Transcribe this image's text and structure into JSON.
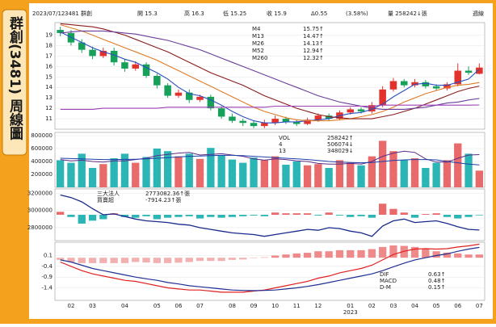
{
  "sidebar_title": "群創(3481) 周線圖",
  "header": {
    "items": [
      "2023/07/12",
      "3481 群創",
      "開 15.3",
      "高 16.3",
      "低 15.25",
      "收 15.9",
      "Δ0.55",
      "(3.58%)",
      "量 258242↓張"
    ],
    "period": "週線"
  },
  "chart_data": {
    "type": "candlestick",
    "categories": [
      null,
      "02",
      null,
      "03",
      null,
      null,
      "04",
      null,
      null,
      "05",
      null,
      "06",
      null,
      "07",
      null,
      null,
      "08",
      null,
      "09",
      null,
      "10",
      null,
      "11",
      null,
      "12",
      null,
      null,
      "01",
      null,
      "02",
      null,
      "03",
      null,
      "04",
      null,
      "05",
      null,
      "06",
      null,
      "07"
    ],
    "year_label": "2023",
    "up_color": "#e3322c",
    "down_color": "#17a05a",
    "price": {
      "ylim": [
        10,
        20.2
      ],
      "yticks": [
        11,
        12,
        13,
        14,
        15,
        16,
        17,
        18,
        19
      ],
      "open": [
        19.5,
        19.2,
        18.3,
        17.6,
        17.0,
        17.5,
        16.4,
        15.8,
        16.2,
        15.1,
        14.2,
        13.2,
        13.5,
        12.8,
        13.1,
        12.0,
        11.2,
        10.8,
        10.6,
        10.3,
        10.6,
        11.0,
        10.7,
        10.5,
        10.9,
        11.3,
        11.0,
        11.6,
        11.9,
        11.7,
        12.3,
        13.8,
        14.6,
        14.2,
        14.5,
        14.1,
        13.9,
        14.3,
        15.6,
        15.3
      ],
      "high": [
        19.8,
        19.5,
        18.6,
        17.9,
        17.8,
        17.8,
        16.7,
        16.5,
        16.4,
        15.3,
        14.4,
        13.8,
        13.8,
        13.3,
        13.3,
        12.2,
        11.5,
        11.0,
        10.8,
        10.9,
        11.3,
        11.2,
        10.9,
        11.1,
        11.5,
        11.5,
        11.8,
        12.1,
        12.1,
        12.6,
        14.1,
        14.9,
        14.8,
        14.8,
        14.7,
        14.3,
        14.5,
        16.3,
        16.0,
        16.3
      ],
      "low": [
        18.9,
        18.0,
        17.3,
        16.7,
        16.8,
        16.1,
        15.5,
        15.6,
        14.9,
        13.9,
        13.0,
        13.0,
        12.5,
        12.6,
        11.8,
        11.0,
        10.6,
        10.3,
        10.1,
        10.1,
        10.4,
        10.5,
        10.3,
        10.4,
        10.7,
        10.8,
        10.9,
        11.4,
        11.5,
        11.5,
        12.1,
        13.6,
        14.0,
        14.0,
        13.9,
        13.7,
        13.7,
        14.1,
        15.2,
        15.25
      ],
      "close": [
        19.2,
        18.3,
        17.6,
        17.0,
        17.5,
        16.4,
        15.8,
        16.2,
        15.1,
        14.2,
        13.2,
        13.5,
        12.8,
        13.1,
        12.0,
        11.2,
        10.8,
        10.6,
        10.3,
        10.6,
        11.0,
        10.7,
        10.5,
        10.9,
        11.3,
        11.0,
        11.6,
        11.9,
        11.7,
        12.3,
        13.8,
        14.6,
        14.2,
        14.5,
        14.1,
        13.9,
        14.3,
        15.6,
        15.4,
        15.9
      ],
      "series": [
        {
          "name": "M4",
          "color": "#2a4fc0",
          "legend_value": "15.75↑",
          "values": [
            19.3,
            18.8,
            18.3,
            17.8,
            17.4,
            17.1,
            16.7,
            16.4,
            15.9,
            15.4,
            14.8,
            14.0,
            13.4,
            13.2,
            12.8,
            12.3,
            11.7,
            11.2,
            10.8,
            10.6,
            10.6,
            10.7,
            10.7,
            10.8,
            10.9,
            11.0,
            11.3,
            11.5,
            11.6,
            11.9,
            12.4,
            13.1,
            13.7,
            14.3,
            14.4,
            14.2,
            14.2,
            14.5,
            14.8,
            15.75
          ]
        },
        {
          "name": "M13",
          "color": "#e07a26",
          "legend_value": "14.47↑",
          "values": [
            20.0,
            19.7,
            19.4,
            19.0,
            18.6,
            18.2,
            17.8,
            17.4,
            17.0,
            16.6,
            16.1,
            15.6,
            15.1,
            14.6,
            14.1,
            13.6,
            13.1,
            12.6,
            12.1,
            11.7,
            11.4,
            11.1,
            10.9,
            10.8,
            10.8,
            10.8,
            10.9,
            11.0,
            11.2,
            11.4,
            11.7,
            12.1,
            12.6,
            13.0,
            13.4,
            13.7,
            14.0,
            14.2,
            14.3,
            14.47
          ]
        },
        {
          "name": "M26",
          "color": "#8a1c1c",
          "legend_value": "14.13↑",
          "values": [
            20.1,
            20.0,
            19.9,
            19.8,
            19.6,
            19.3,
            19.0,
            18.6,
            18.2,
            17.8,
            17.4,
            16.9,
            16.4,
            15.9,
            15.4,
            15.0,
            14.6,
            14.2,
            13.7,
            13.2,
            12.8,
            12.4,
            12.0,
            11.7,
            11.4,
            11.2,
            11.1,
            11.0,
            11.0,
            11.0,
            11.2,
            11.4,
            11.7,
            12.0,
            12.4,
            12.8,
            13.2,
            13.6,
            13.9,
            14.13
          ]
        },
        {
          "name": "M52",
          "color": "#6a3d9a",
          "legend_value": "12.94↑",
          "values": [
            19.2,
            19.3,
            19.4,
            19.4,
            19.4,
            19.3,
            19.2,
            19.1,
            18.9,
            18.7,
            18.5,
            18.2,
            17.9,
            17.6,
            17.2,
            16.8,
            16.4,
            16.0,
            15.6,
            15.2,
            14.8,
            14.4,
            14.0,
            13.6,
            13.2,
            12.9,
            12.6,
            12.4,
            12.2,
            12.0,
            11.9,
            11.9,
            11.9,
            12.0,
            12.1,
            12.3,
            12.5,
            12.6,
            12.8,
            12.94
          ]
        },
        {
          "name": "M260",
          "color": "#9b3fb5",
          "legend_value": "12.32↑",
          "values": [
            11.9,
            11.9,
            11.9,
            11.9,
            12.0,
            12.0,
            12.0,
            12.0,
            12.0,
            12.0,
            12.1,
            12.1,
            12.1,
            12.1,
            12.1,
            12.1,
            12.1,
            12.1,
            12.1,
            12.1,
            12.2,
            12.2,
            12.2,
            12.2,
            12.2,
            12.2,
            12.2,
            12.2,
            12.2,
            12.2,
            12.3,
            12.3,
            12.3,
            12.3,
            12.3,
            12.3,
            12.3,
            12.3,
            12.3,
            12.32
          ]
        }
      ]
    },
    "volume": {
      "ylim": [
        0,
        850000
      ],
      "yticks": [
        200000,
        400000,
        600000,
        800000
      ],
      "legend": [
        {
          "name": "VOL",
          "value": "258242↑"
        },
        {
          "name": "4",
          "value": "506074↓"
        },
        {
          "name": "13",
          "value": "348029↓"
        }
      ],
      "up_color": "#e86a6a",
      "down_color": "#2bb5b5",
      "values": [
        420000,
        380000,
        520000,
        300000,
        360000,
        450000,
        520000,
        380000,
        470000,
        600000,
        560000,
        480000,
        520000,
        440000,
        610000,
        500000,
        430000,
        380000,
        460000,
        420000,
        480000,
        350000,
        400000,
        340000,
        360000,
        300000,
        420000,
        380000,
        340000,
        480000,
        720000,
        560000,
        420000,
        450000,
        300000,
        380000,
        420000,
        680000,
        520000,
        258242
      ],
      "series": [
        {
          "name": "4",
          "color": "#5b2c8a",
          "values": [
            430000,
            410000,
            420000,
            400000,
            390000,
            410000,
            410000,
            430000,
            450000,
            490000,
            510000,
            530000,
            540000,
            500000,
            510000,
            520000,
            500000,
            480000,
            440000,
            420000,
            440000,
            430000,
            410000,
            400000,
            370000,
            360000,
            360000,
            370000,
            360000,
            400000,
            480000,
            530000,
            560000,
            540000,
            440000,
            390000,
            390000,
            450000,
            500000,
            506074
          ]
        },
        {
          "name": "13",
          "color": "#1f3fa8",
          "values": [
            450000,
            445000,
            440000,
            435000,
            430000,
            430000,
            432000,
            435000,
            440000,
            450000,
            460000,
            470000,
            480000,
            485000,
            490000,
            495000,
            495000,
            490000,
            480000,
            470000,
            460000,
            450000,
            440000,
            430000,
            415000,
            400000,
            390000,
            385000,
            380000,
            385000,
            400000,
            415000,
            425000,
            430000,
            430000,
            425000,
            400000,
            380000,
            360000,
            348029
          ]
        }
      ]
    },
    "institutional": {
      "ylim": [
        2650000,
        3250000
      ],
      "yticks": [
        2800000,
        3000000,
        3200000
      ],
      "legend": [
        {
          "name": "三大法人",
          "value": "2773082.36↑張"
        },
        {
          "name": "買賣超",
          "value": "-7914.23↑張"
        }
      ],
      "y2lim": [
        -350000,
        350000
      ],
      "pos_color": "#e86a6a",
      "neg_color": "#2bb5b5",
      "holdings": {
        "name": "三大法人",
        "color": "#1a2a8a",
        "values": [
          3180000,
          3150000,
          3100000,
          3020000,
          2950000,
          2960000,
          2930000,
          2900000,
          2880000,
          2870000,
          2860000,
          2840000,
          2830000,
          2800000,
          2780000,
          2760000,
          2740000,
          2730000,
          2720000,
          2700000,
          2720000,
          2740000,
          2760000,
          2780000,
          2770000,
          2800000,
          2790000,
          2760000,
          2740000,
          2700000,
          2820000,
          2880000,
          2900000,
          2860000,
          2870000,
          2880000,
          2850000,
          2810000,
          2780000,
          2773082.36
        ]
      },
      "net": {
        "name": "買賣超",
        "axis": "y2",
        "values": [
          40000,
          -30000,
          -120000,
          -80000,
          -60000,
          20000,
          -30000,
          -40000,
          -20000,
          -60000,
          -40000,
          -30000,
          -20000,
          -50000,
          -30000,
          -40000,
          -30000,
          -20000,
          -10000,
          -20000,
          30000,
          20000,
          20000,
          20000,
          -10000,
          30000,
          -10000,
          -30000,
          -20000,
          -40000,
          150000,
          80000,
          30000,
          -40000,
          10000,
          20000,
          -30000,
          -50000,
          -30000,
          -7914.23
        ]
      }
    },
    "macd": {
      "ylim": [
        -1.98,
        0.72
      ],
      "yticks": [
        0.1,
        -0.4,
        -0.9,
        -1.4
      ],
      "legend": [
        {
          "name": "DIF",
          "value": "0.63↑"
        },
        {
          "name": "MACD",
          "value": "0.48↑"
        },
        {
          "name": "D-M",
          "value": "0.15↑"
        }
      ],
      "series": [
        {
          "name": "DIF",
          "color": "#e02020",
          "values": [
            -0.2,
            -0.4,
            -0.6,
            -0.75,
            -0.85,
            -0.95,
            -1.05,
            -1.1,
            -1.2,
            -1.3,
            -1.4,
            -1.45,
            -1.5,
            -1.5,
            -1.55,
            -1.6,
            -1.6,
            -1.6,
            -1.55,
            -1.5,
            -1.4,
            -1.3,
            -1.2,
            -1.1,
            -0.95,
            -0.85,
            -0.7,
            -0.6,
            -0.5,
            -0.35,
            -0.1,
            0.15,
            0.3,
            0.4,
            0.42,
            0.4,
            0.42,
            0.5,
            0.55,
            0.63
          ]
        },
        {
          "name": "MACD",
          "color": "#1f3090",
          "values": [
            -0.1,
            -0.2,
            -0.35,
            -0.5,
            -0.6,
            -0.7,
            -0.8,
            -0.9,
            -0.98,
            -1.05,
            -1.15,
            -1.22,
            -1.3,
            -1.35,
            -1.4,
            -1.45,
            -1.5,
            -1.52,
            -1.53,
            -1.52,
            -1.5,
            -1.45,
            -1.4,
            -1.33,
            -1.25,
            -1.15,
            -1.05,
            -0.95,
            -0.85,
            -0.75,
            -0.6,
            -0.42,
            -0.25,
            -0.1,
            0.0,
            0.1,
            0.18,
            0.3,
            0.4,
            0.48
          ]
        }
      ],
      "dm": {
        "name": "D-M",
        "pos_color": "#ef8a8a",
        "neg_color": "#f3b0b0",
        "values": [
          -0.1,
          -0.2,
          -0.25,
          -0.25,
          -0.25,
          -0.25,
          -0.25,
          -0.2,
          -0.22,
          -0.25,
          -0.25,
          -0.23,
          -0.2,
          -0.15,
          -0.15,
          -0.15,
          -0.1,
          -0.08,
          -0.02,
          0.02,
          0.1,
          0.15,
          0.2,
          0.23,
          0.3,
          0.3,
          0.35,
          0.35,
          0.35,
          0.4,
          0.5,
          0.57,
          0.55,
          0.5,
          0.42,
          0.3,
          0.24,
          0.2,
          0.15,
          0.15
        ]
      }
    }
  }
}
